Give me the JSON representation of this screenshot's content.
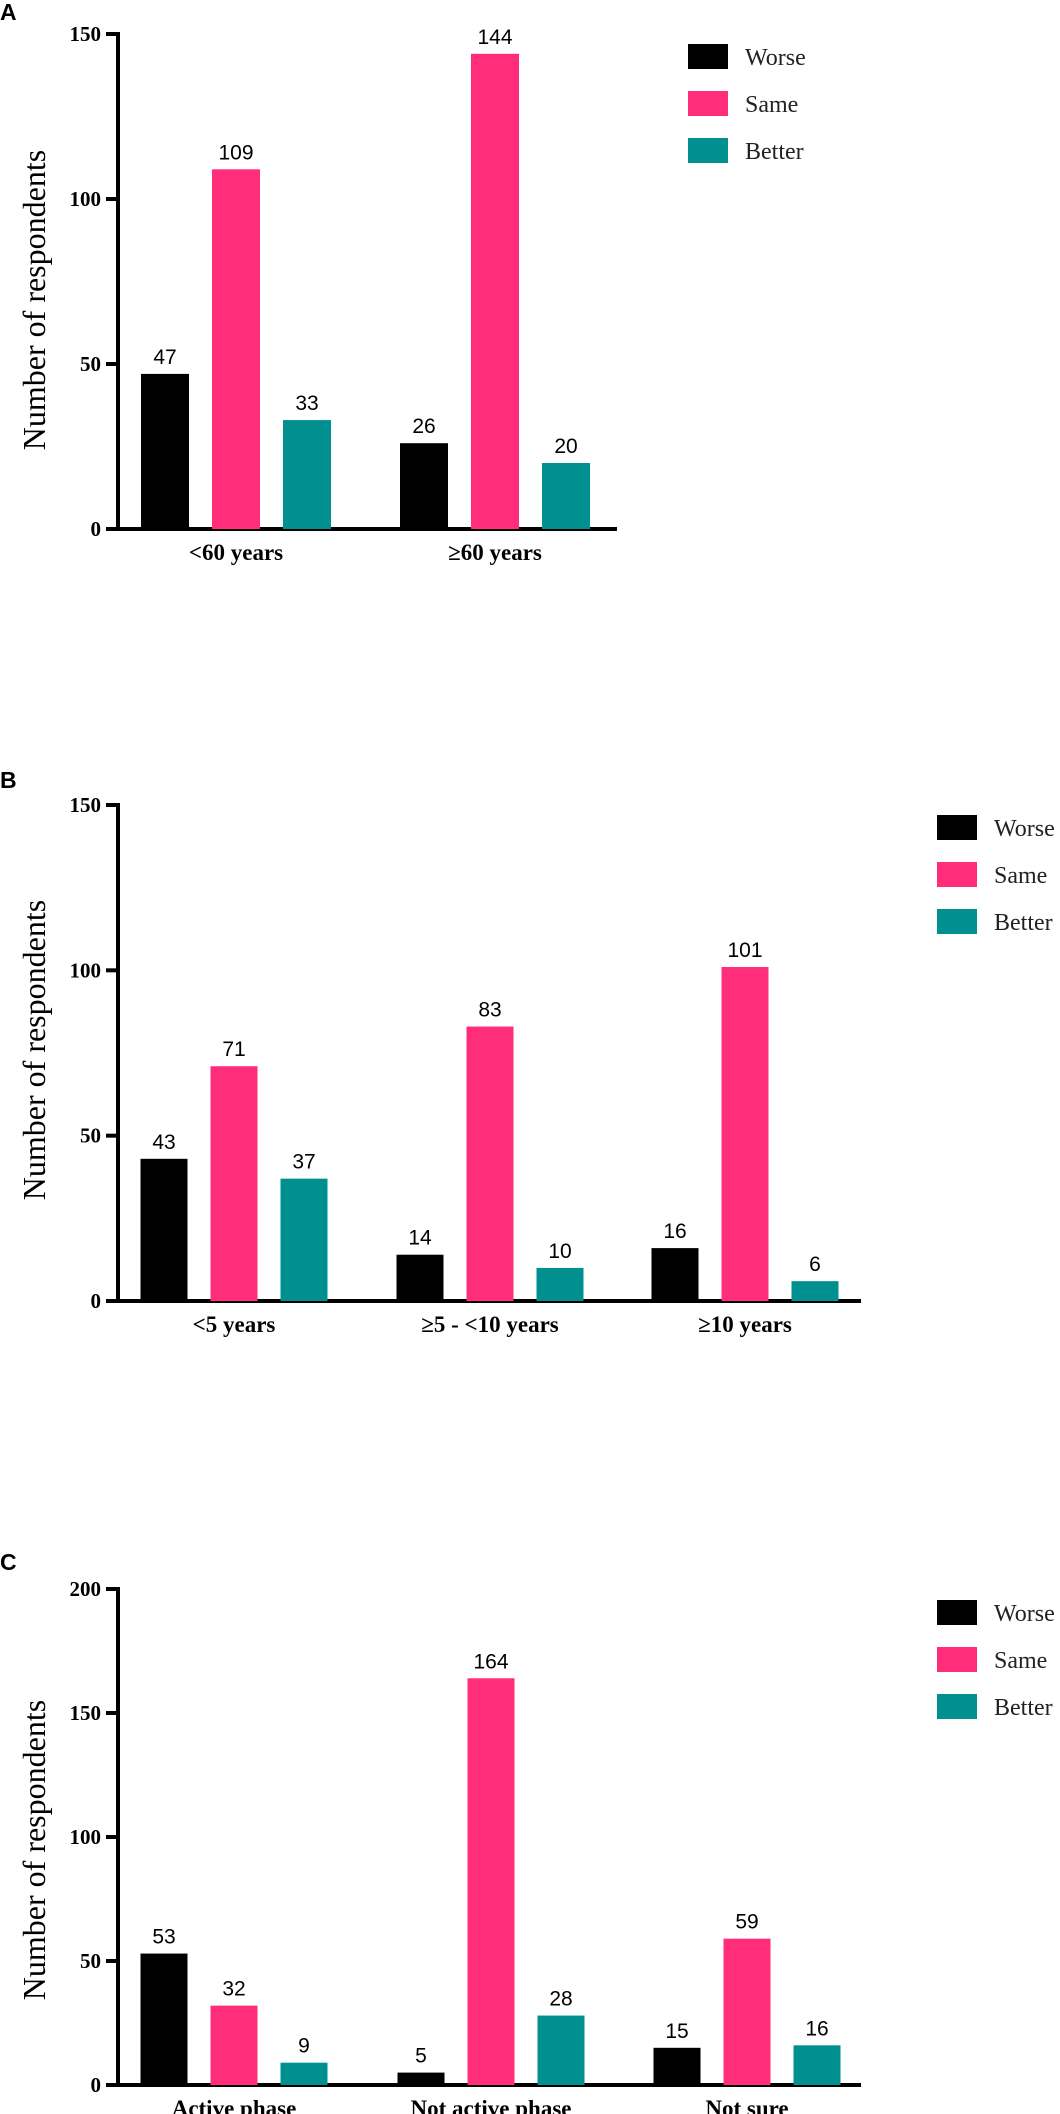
{
  "colors": {
    "Worse": "#000000",
    "Same": "#ff2d7a",
    "Better": "#009090"
  },
  "chart_data": [
    {
      "panel": "A",
      "type": "bar",
      "ylabel": "Number of respondents",
      "ylim": [
        0,
        150
      ],
      "yticks": [
        0,
        50,
        100,
        150
      ],
      "categories": [
        "<60 years",
        "≥60 years"
      ],
      "series": [
        {
          "name": "Worse",
          "values": [
            47,
            26
          ]
        },
        {
          "name": "Same",
          "values": [
            109,
            144
          ]
        },
        {
          "name": "Better",
          "values": [
            33,
            20
          ]
        }
      ],
      "legend": "top-right"
    },
    {
      "panel": "B",
      "type": "bar",
      "ylabel": "Number of respondents",
      "ylim": [
        0,
        150
      ],
      "yticks": [
        0,
        50,
        100,
        150
      ],
      "categories": [
        "<5 years",
        "≥5 - <10 years",
        "≥10 years"
      ],
      "series": [
        {
          "name": "Worse",
          "values": [
            43,
            14,
            16
          ]
        },
        {
          "name": "Same",
          "values": [
            71,
            83,
            101
          ]
        },
        {
          "name": "Better",
          "values": [
            37,
            10,
            6
          ]
        }
      ],
      "legend": "top-right"
    },
    {
      "panel": "C",
      "type": "bar",
      "ylabel": "Number of respondents",
      "ylim": [
        0,
        200
      ],
      "yticks": [
        0,
        50,
        100,
        150,
        200
      ],
      "categories": [
        "Active phase",
        "Not active phase",
        "Not sure"
      ],
      "series": [
        {
          "name": "Worse",
          "values": [
            53,
            5,
            15
          ]
        },
        {
          "name": "Same",
          "values": [
            32,
            164,
            59
          ]
        },
        {
          "name": "Better",
          "values": [
            9,
            28,
            16
          ]
        }
      ],
      "legend": "top-right"
    }
  ]
}
